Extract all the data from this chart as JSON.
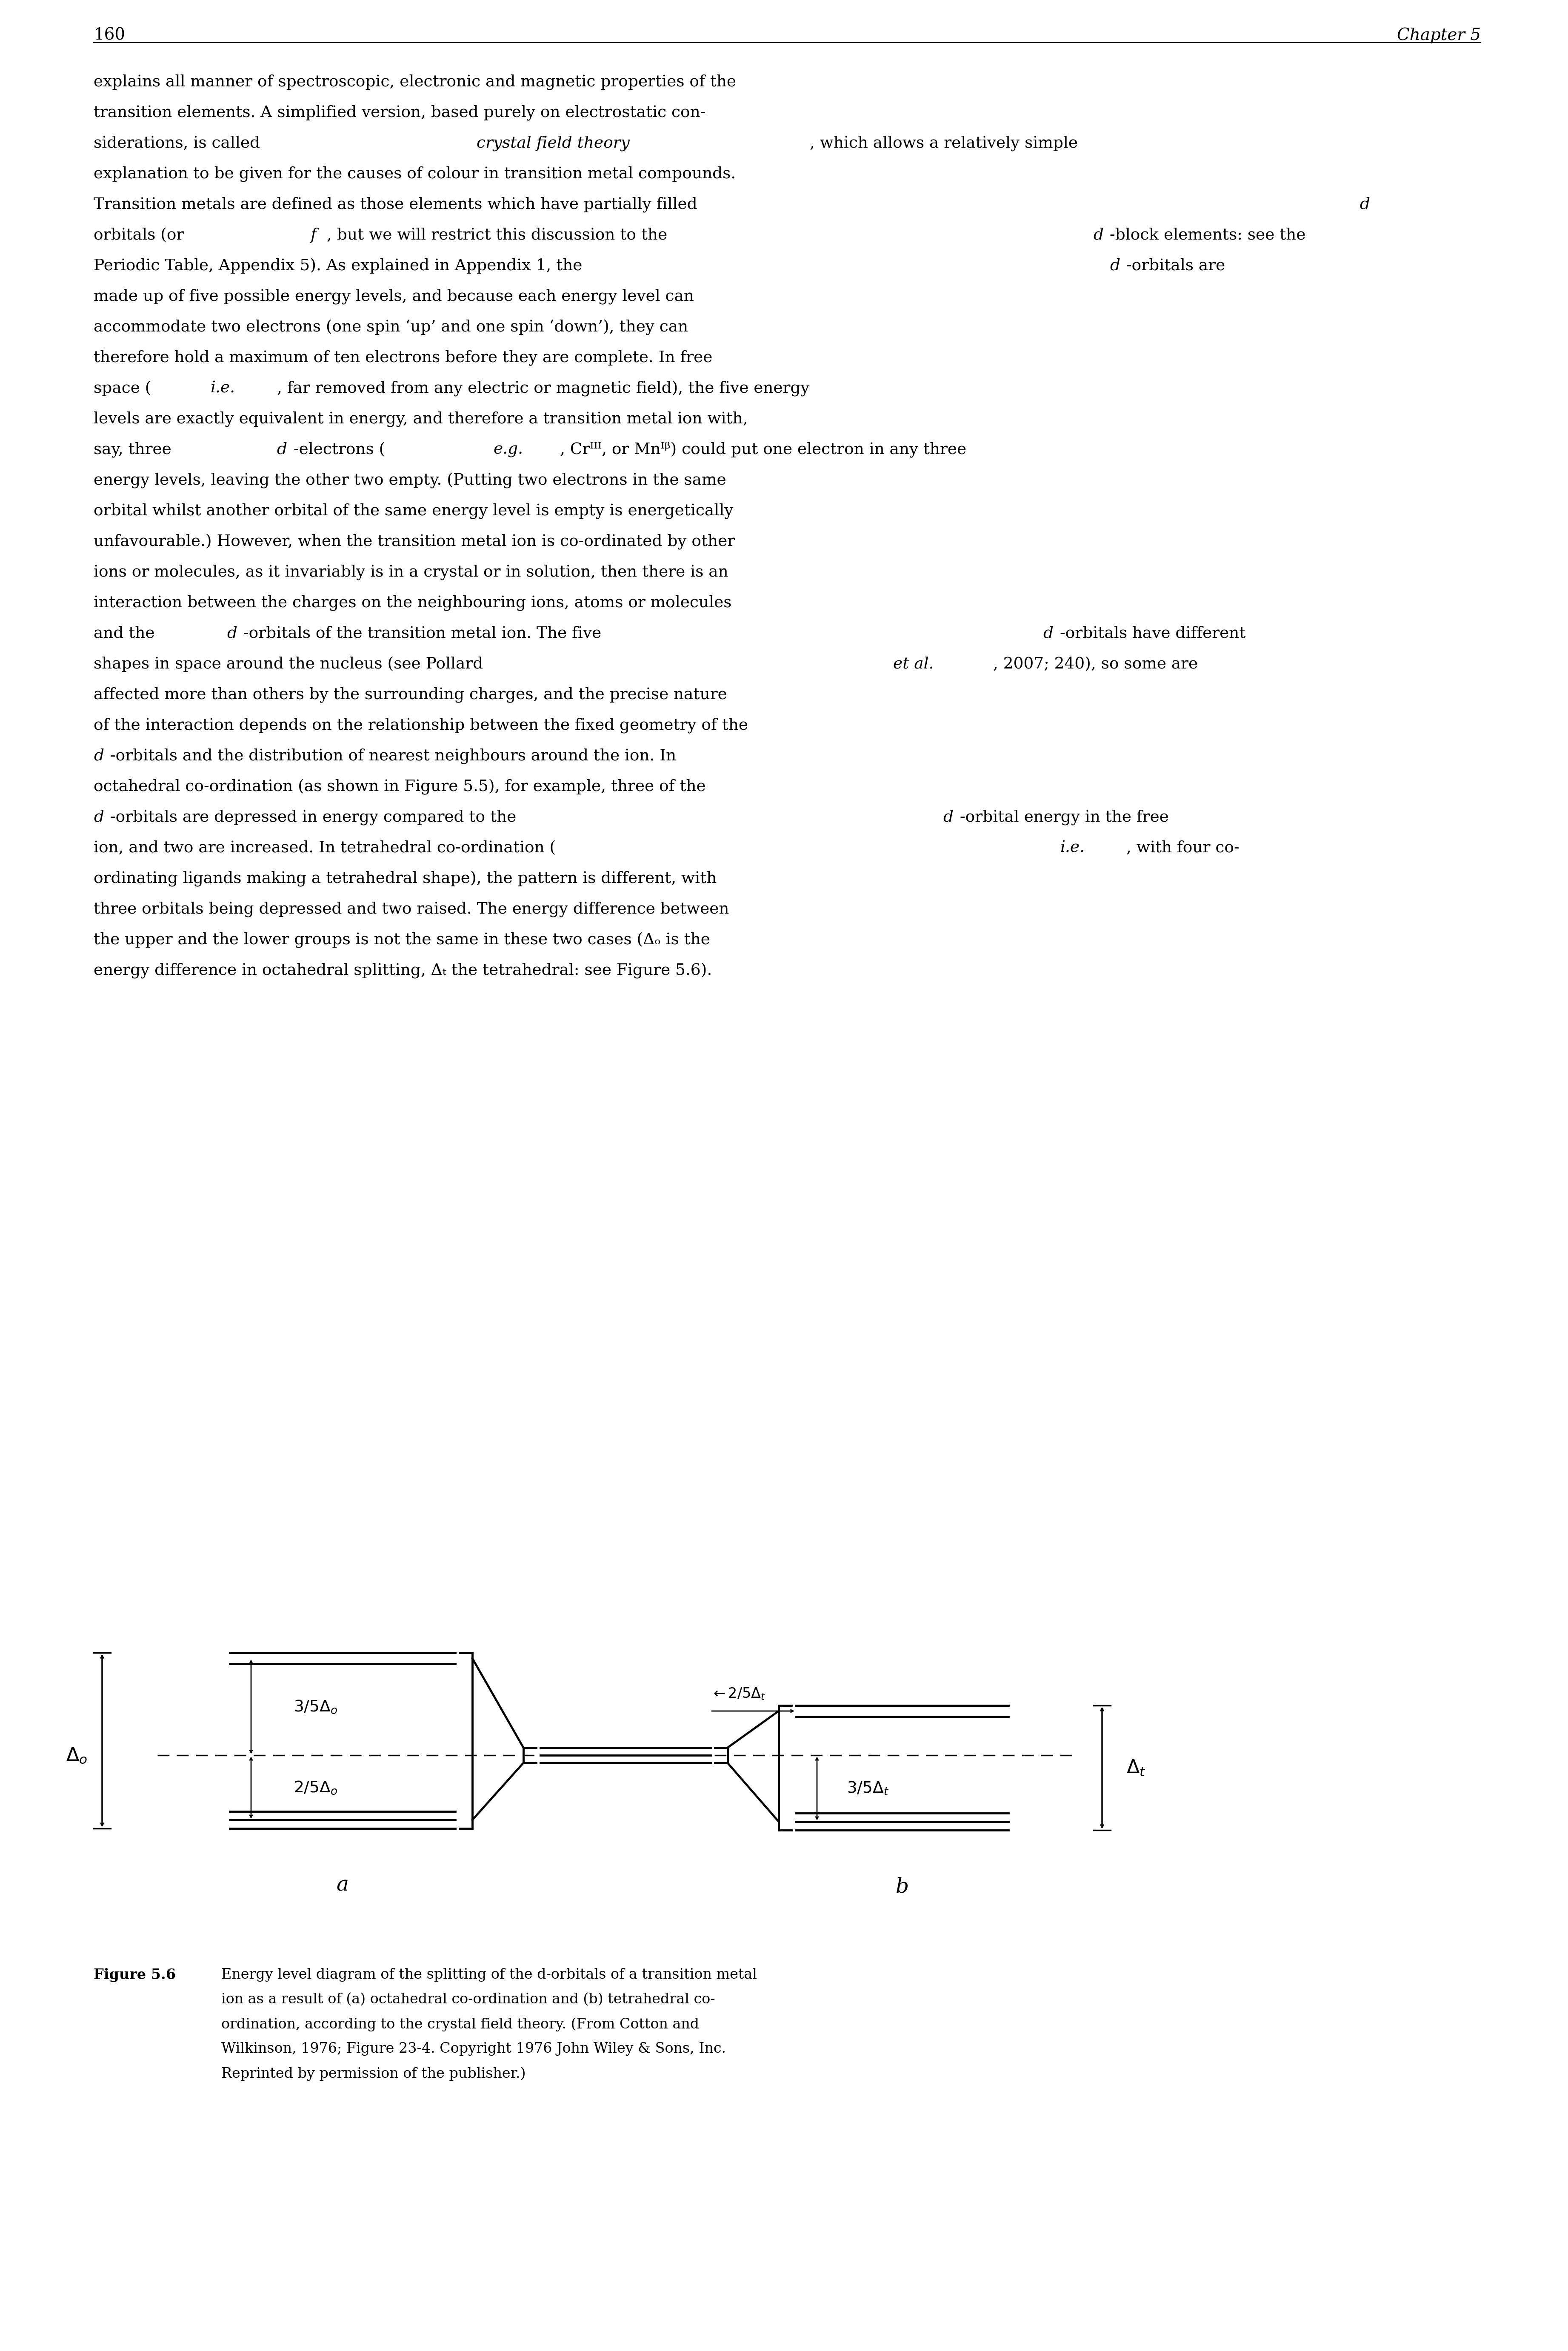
{
  "page_number": "160",
  "chapter": "Chapter 5",
  "body_text": [
    "explains all manner of spectroscopic, electronic and magnetic properties of the transition elements. A simplified version, based purely on electrostatic con-siderations, is called crystal field theory, which allows a relatively simple explanation to be given for the causes of colour in transition metal compounds. Transition metals are defined as those elements which have partially filled d orbitals (or f, but we will restrict this discussion to the d-block elements: see the Periodic Table, Appendix 5). As explained in Appendix 1, the d-orbitals are made up of five possible energy levels, and because each energy level can accommodate two electrons (one spin ‘up’ and one spin ‘down’), they can therefore hold a maximum of ten electrons before they are complete. In free space (i.e., far removed from any electric or magnetic field), the five energy levels are exactly equivalent in energy, and therefore a transition metal ion with, say, three d-electrons (e.g., Crᴵᴵᴵ, or Mnᴵᵝ) could put one electron in any three energy levels, leaving the other two empty. (Putting two electrons in the same orbital whilst another orbital of the same energy level is empty is energetically unfavourable.) However, when the transition metal ion is co-ordinated by other ions or molecules, as it invariably is in a crystal or in solution, then there is an interaction between the charges on the neighbouring ions, atoms or molecules and the d-orbitals of the transition metal ion. The five d-orbitals have different shapes in space around the nucleus (see Pollard et al., 2007; 240), so some are affected more than others by the surrounding charges, and the precise nature of the interaction depends on the relationship between the fixed geometry of the d-orbitals and the distribution of nearest neighbours around the ion. In octahedral co-ordination (as shown in Figure 5.5), for example, three of the d-orbitals are depressed in energy compared to the d-orbital energy in the free ion, and two are increased. In tetrahedral co-ordination (i.e., with four co-ordinating ligands making a tetrahedral shape), the pattern is different, with three orbitals being depressed and two raised. The energy difference between the upper and the lower groups is not the same in these two cases (Δₒ is the energy difference in octahedral splitting, Δₜ the tetrahedral: see Figure 5.6)."
  ],
  "figure_caption_bold": "Figure 5.6",
  "figure_caption_text": "Energy level diagram of the splitting of the d-orbitals of a transition metal ion as a result of (a) octahedral co-ordination and (b) tetrahedral co-ordination, according to the crystal field theory. (From Cotton and Wilkinson, 1976; Figure 23-4. Copyright 1976 John Wiley & Sons, Inc. Reprinted by permission of the publisher.)",
  "background_color": "#ffffff",
  "text_color": "#000000",
  "label_a": "a",
  "label_b": "b"
}
